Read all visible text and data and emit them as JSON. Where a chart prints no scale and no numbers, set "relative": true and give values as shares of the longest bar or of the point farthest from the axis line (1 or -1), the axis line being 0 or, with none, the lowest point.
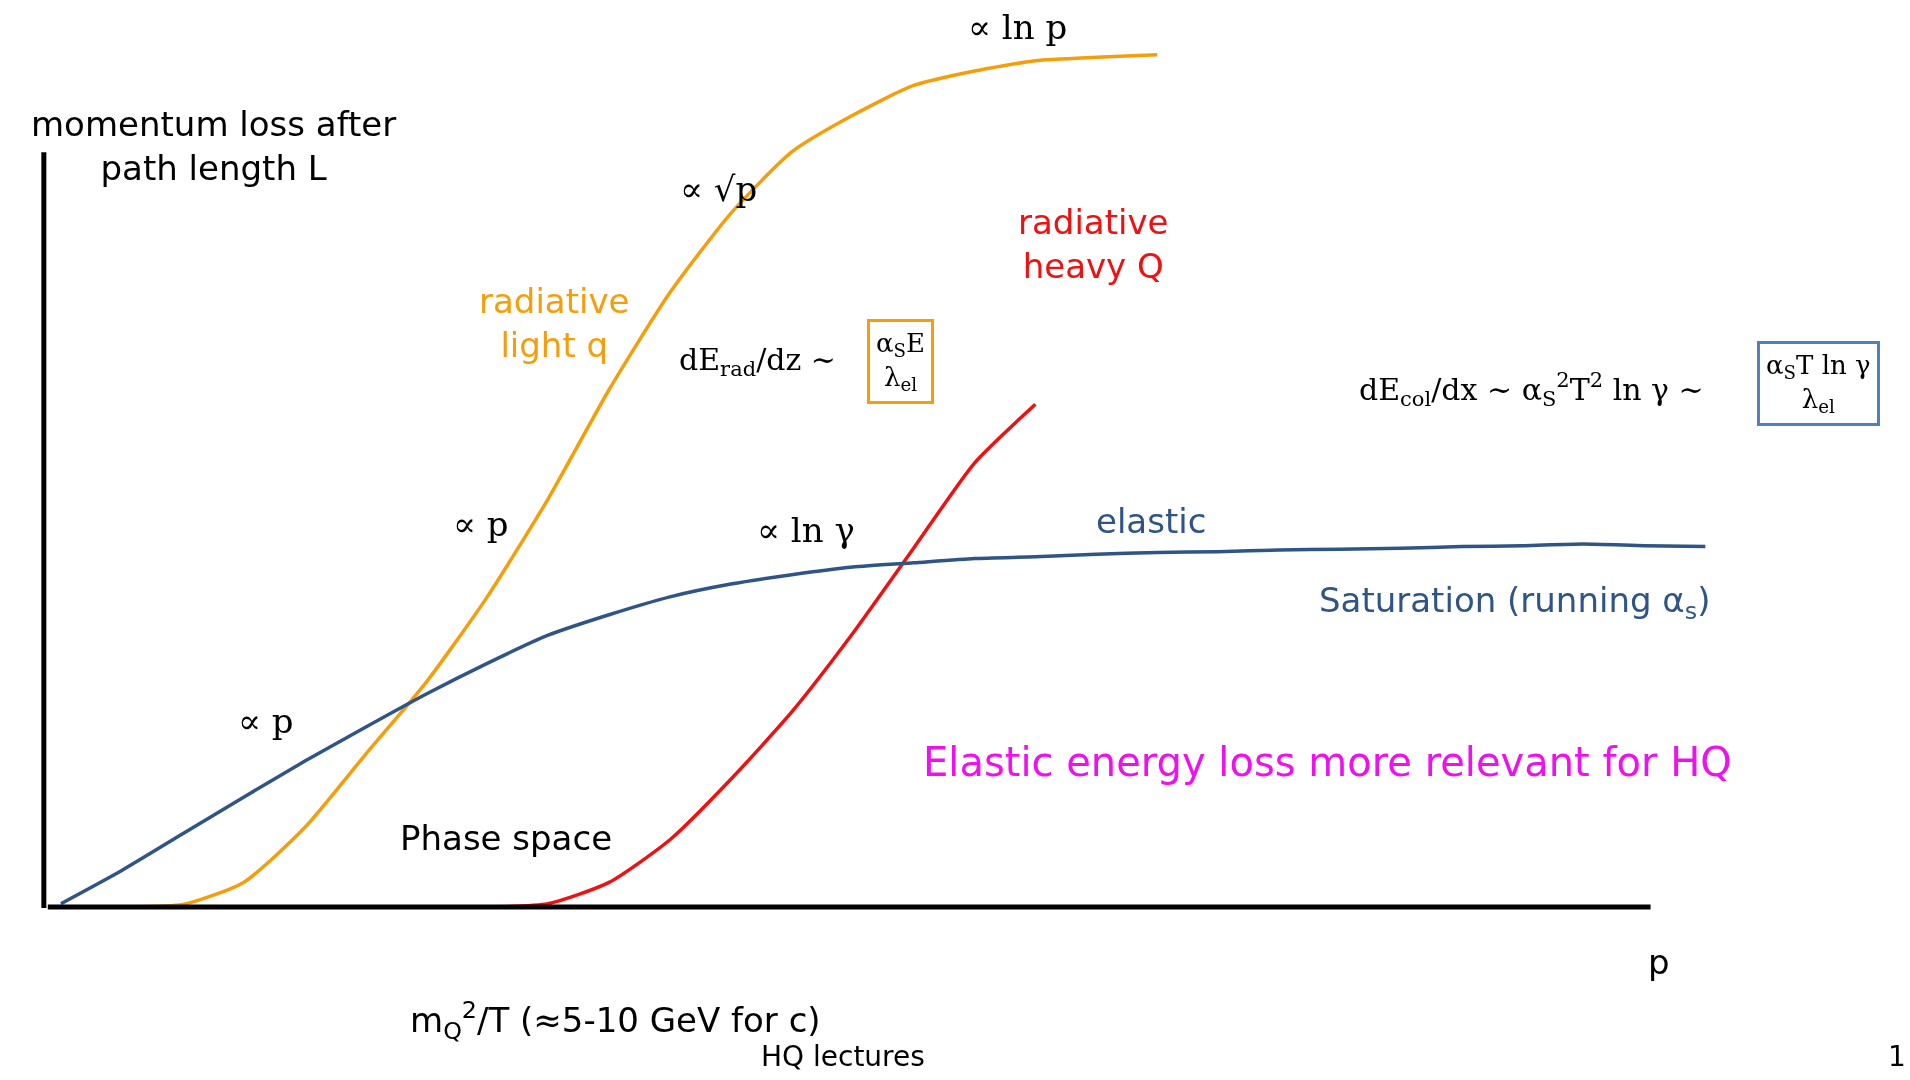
{
  "chart_data": {
    "type": "line",
    "relative": true,
    "legend": false,
    "xlabel": "p",
    "ylabel": "momentum loss after\npath length L",
    "categories": [
      null,
      null,
      null,
      null,
      null,
      null,
      null,
      null,
      null,
      null,
      null,
      null,
      null,
      null,
      null,
      null,
      null,
      null,
      null,
      null,
      null,
      null,
      null,
      null,
      null,
      null,
      null,
      null
    ],
    "series": [
      {
        "name": "radiative\nlight q",
        "color": "#f59e0b",
        "values": [
          0,
          0,
          0.003,
          0.029,
          0.093,
          0.179,
          0.264,
          0.364,
          0.479,
          0.607,
          0.721,
          0.814,
          0.886,
          0.929,
          0.964,
          0.981,
          0.993,
          0.997,
          1,
          null,
          null,
          null,
          null,
          null,
          null,
          null,
          null,
          null
        ]
      },
      {
        "name": "radiative\nheavy Q",
        "color": "#ee1111",
        "values": [
          null,
          null,
          null,
          null,
          null,
          null,
          null,
          0,
          0.004,
          0.029,
          0.079,
          0.15,
          0.229,
          0.321,
          0.421,
          0.521,
          0.59,
          null,
          null,
          null,
          null,
          null,
          null,
          null,
          null,
          null,
          null,
          null
        ]
      },
      {
        "name": "elastic",
        "color": "#2f5486",
        "values": [
          0.004,
          0.043,
          0.086,
          0.129,
          0.171,
          0.211,
          0.25,
          0.286,
          0.319,
          0.343,
          0.364,
          0.379,
          0.39,
          0.399,
          0.404,
          0.409,
          0.411,
          0.414,
          0.416,
          0.417,
          0.419,
          0.42,
          0.421,
          0.423,
          0.424,
          0.426,
          0.424,
          0.423
        ]
      }
    ],
    "annotations": [
      "∝ ln p",
      "∝ √p",
      "∝ p",
      "∝ ln γ",
      "∝ p",
      "dE$_{rad}$/dz ∼",
      "α$_{S}$E\nλ$_{el}$",
      "dE$_{col}$/dx ∼ α$_{S}$$^{2}$T$^{2}$ ln γ ∼",
      "α$_{S}$T ln γ\nλ$_{el}$",
      "Saturation (running α$_{s}$)",
      "Elastic energy loss more relevant for HQ",
      "Phase space",
      "m$_{Q}$$^{2}$/T (≈5-10 GeV for c)",
      "HQ lectures",
      "1"
    ]
  }
}
